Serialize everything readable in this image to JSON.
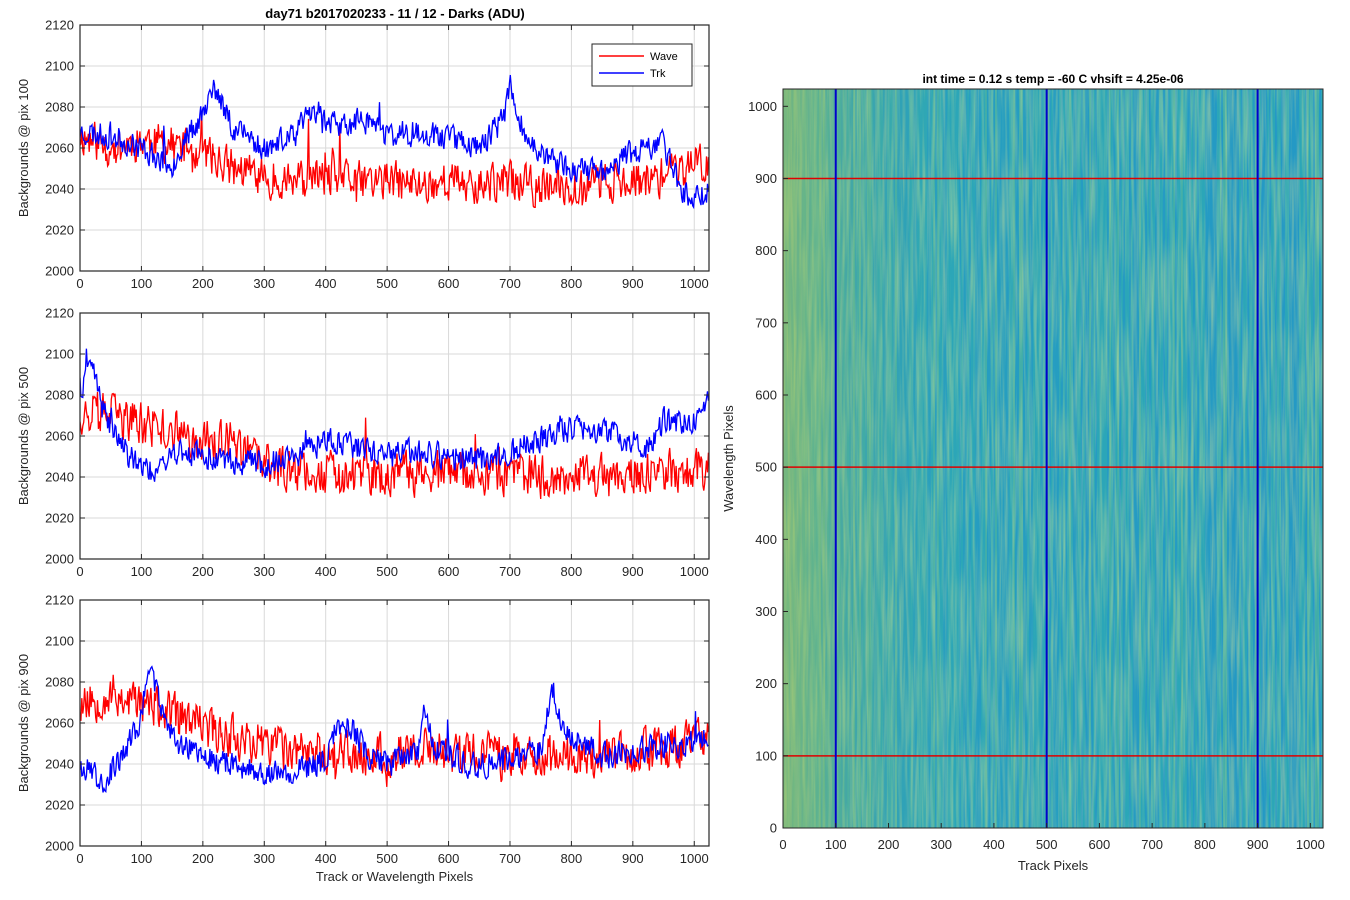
{
  "figure_title": "day71 b2017020233 - 11 / 12 - Darks (ADU)",
  "colors": {
    "wave": "#ff0000",
    "trk": "#0000ff",
    "grid": "#d9d9d9",
    "axis": "#262626",
    "heat_low": "#1f8fcf",
    "heat_mid": "#2ba7b8",
    "heat_high": "#b8c94a"
  },
  "chart_data": [
    {
      "type": "line",
      "xlabel": "",
      "ylabel": "Backgrounds @ pix 100",
      "xlim": [
        0,
        1024
      ],
      "ylim": [
        2000,
        2120
      ],
      "xticks": [
        0,
        100,
        200,
        300,
        400,
        500,
        600,
        700,
        800,
        900,
        1000
      ],
      "yticks": [
        2000,
        2020,
        2040,
        2060,
        2080,
        2100,
        2120
      ],
      "grid": true,
      "legend": "top-right",
      "series": [
        {
          "name": "Wave",
          "base": [
            [
              0,
              2066
            ],
            [
              50,
              2060
            ],
            [
              100,
              2064
            ],
            [
              150,
              2062
            ],
            [
              200,
              2058
            ],
            [
              250,
              2050
            ],
            [
              300,
              2046
            ],
            [
              350,
              2044
            ],
            [
              400,
              2046
            ],
            [
              450,
              2044
            ],
            [
              500,
              2044
            ],
            [
              550,
              2042
            ],
            [
              600,
              2044
            ],
            [
              650,
              2042
            ],
            [
              700,
              2044
            ],
            [
              750,
              2040
            ],
            [
              800,
              2042
            ],
            [
              850,
              2044
            ],
            [
              900,
              2044
            ],
            [
              950,
              2046
            ],
            [
              1000,
              2052
            ],
            [
              1024,
              2054
            ]
          ],
          "noise": 9,
          "seed": 11
        },
        {
          "name": "Trk",
          "base": [
            [
              0,
              2068
            ],
            [
              50,
              2066
            ],
            [
              100,
              2060
            ],
            [
              150,
              2052
            ],
            [
              200,
              2078
            ],
            [
              220,
              2088
            ],
            [
              250,
              2070
            ],
            [
              300,
              2060
            ],
            [
              350,
              2066
            ],
            [
              380,
              2080
            ],
            [
              420,
              2070
            ],
            [
              470,
              2074
            ],
            [
              500,
              2066
            ],
            [
              550,
              2068
            ],
            [
              600,
              2066
            ],
            [
              650,
              2060
            ],
            [
              690,
              2075
            ],
            [
              700,
              2092
            ],
            [
              720,
              2070
            ],
            [
              760,
              2054
            ],
            [
              800,
              2050
            ],
            [
              850,
              2048
            ],
            [
              900,
              2058
            ],
            [
              950,
              2062
            ],
            [
              980,
              2040
            ],
            [
              1000,
              2036
            ],
            [
              1024,
              2038
            ]
          ],
          "noise": 6,
          "seed": 23
        }
      ]
    },
    {
      "type": "line",
      "xlabel": "",
      "ylabel": "Backgrounds @ pix 500",
      "xlim": [
        0,
        1024
      ],
      "ylim": [
        2000,
        2120
      ],
      "xticks": [
        0,
        100,
        200,
        300,
        400,
        500,
        600,
        700,
        800,
        900,
        1000
      ],
      "yticks": [
        2000,
        2020,
        2040,
        2060,
        2080,
        2100,
        2120
      ],
      "grid": true,
      "legend": "none",
      "series": [
        {
          "name": "Wave",
          "base": [
            [
              0,
              2072
            ],
            [
              50,
              2070
            ],
            [
              100,
              2066
            ],
            [
              150,
              2062
            ],
            [
              200,
              2058
            ],
            [
              250,
              2056
            ],
            [
              300,
              2046
            ],
            [
              350,
              2044
            ],
            [
              400,
              2042
            ],
            [
              450,
              2040
            ],
            [
              500,
              2040
            ],
            [
              550,
              2042
            ],
            [
              600,
              2042
            ],
            [
              650,
              2040
            ],
            [
              700,
              2042
            ],
            [
              750,
              2040
            ],
            [
              800,
              2042
            ],
            [
              850,
              2040
            ],
            [
              900,
              2040
            ],
            [
              950,
              2042
            ],
            [
              1000,
              2044
            ],
            [
              1024,
              2044
            ]
          ],
          "noise": 10,
          "seed": 37
        },
        {
          "name": "Trk",
          "base": [
            [
              0,
              2080
            ],
            [
              20,
              2094
            ],
            [
              40,
              2070
            ],
            [
              80,
              2050
            ],
            [
              120,
              2042
            ],
            [
              150,
              2052
            ],
            [
              200,
              2050
            ],
            [
              250,
              2048
            ],
            [
              300,
              2046
            ],
            [
              350,
              2050
            ],
            [
              400,
              2058
            ],
            [
              450,
              2054
            ],
            [
              500,
              2050
            ],
            [
              550,
              2052
            ],
            [
              600,
              2050
            ],
            [
              650,
              2048
            ],
            [
              700,
              2052
            ],
            [
              750,
              2058
            ],
            [
              800,
              2064
            ],
            [
              850,
              2062
            ],
            [
              900,
              2058
            ],
            [
              930,
              2054
            ],
            [
              950,
              2068
            ],
            [
              1000,
              2066
            ],
            [
              1024,
              2078
            ]
          ],
          "noise": 6,
          "seed": 41
        }
      ]
    },
    {
      "type": "line",
      "xlabel": "Track or Wavelength Pixels",
      "ylabel": "Backgrounds @ pix 900",
      "xlim": [
        0,
        1024
      ],
      "ylim": [
        2000,
        2120
      ],
      "xticks": [
        0,
        100,
        200,
        300,
        400,
        500,
        600,
        700,
        800,
        900,
        1000
      ],
      "yticks": [
        2000,
        2020,
        2040,
        2060,
        2080,
        2100,
        2120
      ],
      "grid": true,
      "legend": "none",
      "series": [
        {
          "name": "Wave",
          "base": [
            [
              0,
              2070
            ],
            [
              50,
              2074
            ],
            [
              100,
              2070
            ],
            [
              150,
              2064
            ],
            [
              200,
              2058
            ],
            [
              250,
              2054
            ],
            [
              300,
              2050
            ],
            [
              350,
              2048
            ],
            [
              400,
              2046
            ],
            [
              450,
              2044
            ],
            [
              500,
              2044
            ],
            [
              550,
              2046
            ],
            [
              600,
              2046
            ],
            [
              650,
              2044
            ],
            [
              700,
              2044
            ],
            [
              750,
              2044
            ],
            [
              800,
              2044
            ],
            [
              850,
              2044
            ],
            [
              900,
              2046
            ],
            [
              950,
              2048
            ],
            [
              1000,
              2050
            ],
            [
              1024,
              2056
            ]
          ],
          "noise": 10,
          "seed": 53
        },
        {
          "name": "Trk",
          "base": [
            [
              0,
              2040
            ],
            [
              40,
              2032
            ],
            [
              70,
              2044
            ],
            [
              100,
              2062
            ],
            [
              110,
              2086
            ],
            [
              130,
              2070
            ],
            [
              160,
              2050
            ],
            [
              200,
              2044
            ],
            [
              250,
              2040
            ],
            [
              300,
              2036
            ],
            [
              350,
              2036
            ],
            [
              400,
              2042
            ],
            [
              420,
              2060
            ],
            [
              440,
              2058
            ],
            [
              470,
              2044
            ],
            [
              500,
              2040
            ],
            [
              550,
              2044
            ],
            [
              560,
              2066
            ],
            [
              580,
              2046
            ],
            [
              650,
              2040
            ],
            [
              700,
              2042
            ],
            [
              750,
              2048
            ],
            [
              770,
              2076
            ],
            [
              790,
              2056
            ],
            [
              850,
              2044
            ],
            [
              900,
              2046
            ],
            [
              950,
              2050
            ],
            [
              1000,
              2050
            ],
            [
              1024,
              2052
            ]
          ],
          "noise": 6,
          "seed": 67
        }
      ]
    },
    {
      "type": "heatmap",
      "title": "int time = 0.12 s    temp = -60 C    vhsift = 4.25e-06",
      "xlabel": "Track Pixels",
      "ylabel": "Wavelength Pixels",
      "xlim": [
        0,
        1024
      ],
      "ylim": [
        0,
        1024
      ],
      "xticks": [
        0,
        100,
        200,
        300,
        400,
        500,
        600,
        700,
        800,
        900,
        1000
      ],
      "yticks": [
        0,
        100,
        200,
        300,
        400,
        500,
        600,
        700,
        800,
        900,
        1000
      ],
      "vertical_lines": [
        100,
        500,
        900
      ],
      "horizontal_lines": [
        100,
        500,
        900
      ]
    }
  ]
}
